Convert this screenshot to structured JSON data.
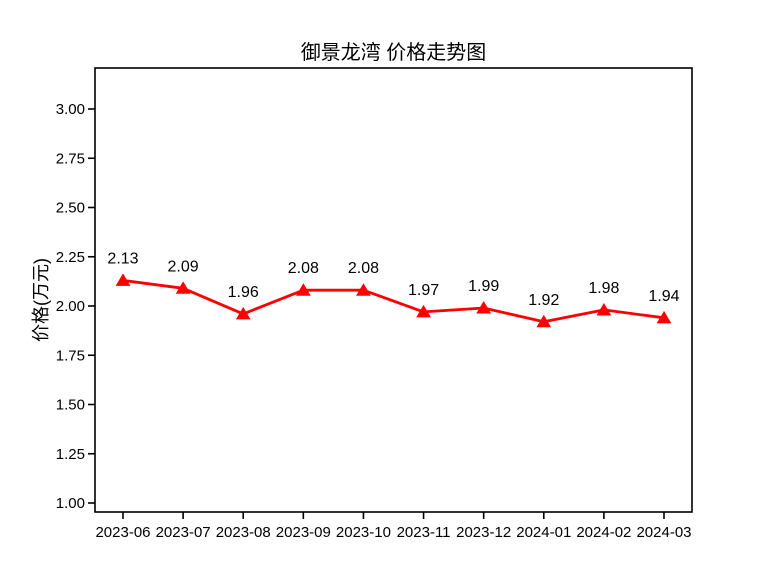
{
  "chart_data": {
    "type": "line",
    "title": "御景龙湾 价格走势图",
    "xlabel": "",
    "ylabel": "价格(万元)",
    "categories": [
      "2023-06",
      "2023-07",
      "2023-08",
      "2023-09",
      "2023-10",
      "2023-11",
      "2023-12",
      "2024-01",
      "2024-02",
      "2024-03"
    ],
    "series": [
      {
        "values": [
          2.13,
          2.09,
          1.96,
          2.08,
          2.08,
          1.97,
          1.99,
          1.92,
          1.98,
          1.94
        ],
        "value_labels": [
          "2.13",
          "2.09",
          "1.96",
          "2.08",
          "2.08",
          "1.97",
          "1.99",
          "1.92",
          "1.98",
          "1.94"
        ],
        "color": "#ff0000",
        "marker": "triangle-up"
      }
    ],
    "ylim": [
      1.0,
      3.0
    ],
    "yticks": [
      "1.00",
      "1.25",
      "1.50",
      "1.75",
      "2.00",
      "2.25",
      "2.50",
      "2.75",
      "3.00"
    ],
    "grid": false,
    "legend": null,
    "axis_color": "#000000",
    "text_color": "#000000",
    "background": "#ffffff"
  }
}
